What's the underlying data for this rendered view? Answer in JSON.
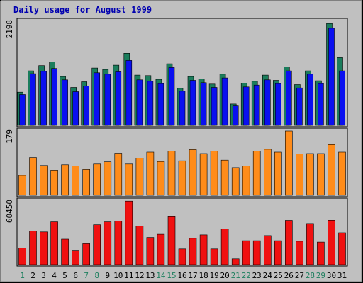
{
  "chart_data": {
    "type": "bar",
    "title": "Daily usage for August 1999",
    "categories": [
      "1",
      "2",
      "3",
      "4",
      "5",
      "6",
      "7",
      "8",
      "9",
      "10",
      "11",
      "12",
      "13",
      "14",
      "15",
      "16",
      "17",
      "18",
      "19",
      "20",
      "21",
      "22",
      "23",
      "24",
      "25",
      "26",
      "27",
      "28",
      "29",
      "30",
      "31"
    ],
    "weekend_days": [
      "1",
      "7",
      "8",
      "14",
      "15",
      "21",
      "22",
      "28",
      "29"
    ],
    "panels": [
      {
        "name": "panel-top",
        "max_label": "2198",
        "ymax": 2198,
        "series": [
          {
            "color": "#1b7d5c",
            "values": [
              700,
              1150,
              1260,
              1340,
              1030,
              800,
              920,
              1210,
              1180,
              1270,
              1520,
              1060,
              1050,
              970,
              1300,
              780,
              1030,
              980,
              870,
              1080,
              450,
              890,
              930,
              1060,
              950,
              1230,
              860,
              1150,
              940,
              2150,
              1430
            ]
          },
          {
            "color": "#0a10f0",
            "values": [
              650,
              1090,
              1140,
              1200,
              960,
              710,
              830,
              1110,
              1080,
              1130,
              1370,
              960,
              930,
              880,
              1220,
              720,
              950,
              900,
              800,
              1000,
              410,
              810,
              850,
              960,
              880,
              1150,
              790,
              1080,
              880,
              2050,
              1150
            ]
          }
        ]
      },
      {
        "name": "panel-middle",
        "max_label": "179",
        "ymax": 179,
        "series": [
          {
            "color": "#ff8c1a",
            "values": [
              55,
              105,
              83,
              70,
              85,
              82,
              72,
              87,
              93,
              117,
              87,
              103,
              120,
              94,
              123,
              96,
              127,
              116,
              123,
              98,
              77,
              82,
              123,
              128,
              120,
              179,
              115,
              116,
              116,
              141,
              120
            ]
          }
        ]
      },
      {
        "name": "panel-bottom",
        "max_label": "60450",
        "ymax": 60450,
        "series": [
          {
            "color": "#f01010",
            "values": [
              15800,
              31800,
              31000,
              40600,
              24200,
              13000,
              19900,
              37800,
              40600,
              41200,
              60300,
              36500,
              25800,
              28800,
              45500,
              14900,
              25000,
              28300,
              14900,
              33800,
              5500,
              22800,
              22800,
              27600,
              22800,
              42000,
              22200,
              39000,
              21400,
              42100,
              30200
            ]
          }
        ]
      }
    ]
  }
}
